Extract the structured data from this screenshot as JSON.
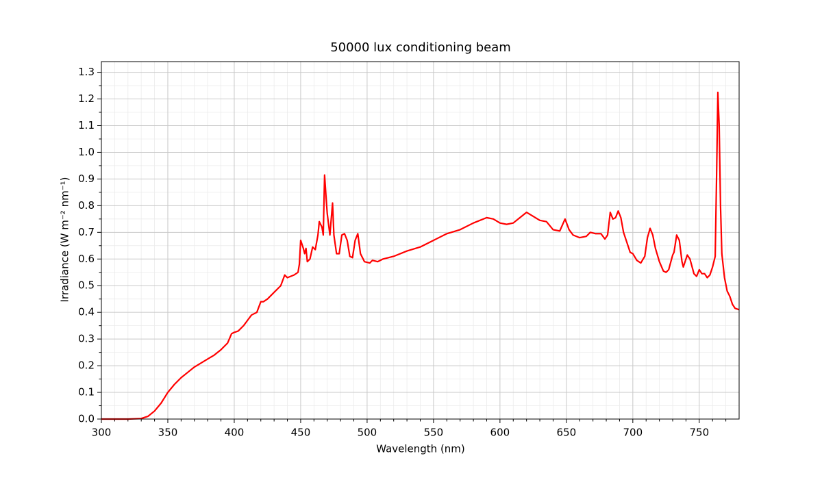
{
  "chart_data": {
    "type": "line",
    "title": "50000 lux conditioning beam",
    "xlabel": "Wavelength (nm)",
    "ylabel": "Irradiance (W m⁻² nm⁻¹)",
    "color": "#ff0000",
    "grid": true,
    "xlim": [
      300,
      780
    ],
    "ylim": [
      0,
      1.34
    ],
    "xticks": [
      300,
      350,
      400,
      450,
      500,
      550,
      600,
      650,
      700,
      750
    ],
    "yticks": [
      {
        "value": 0,
        "label": "0.0"
      },
      0.1,
      0.2,
      0.3,
      0.4,
      0.5,
      0.6,
      0.7,
      0.8,
      0.9,
      {
        "value": 1,
        "label": "1.0"
      },
      1.1,
      1.2,
      1.3
    ],
    "xminorticks": [
      310,
      320,
      330,
      340,
      360,
      370,
      380,
      390,
      410,
      420,
      430,
      440,
      460,
      470,
      480,
      490,
      510,
      520,
      530,
      540,
      560,
      570,
      580,
      590,
      610,
      620,
      630,
      640,
      660,
      670,
      680,
      690,
      710,
      720,
      730,
      740,
      760,
      770
    ],
    "yminorticks": [
      0.05,
      0.15,
      0.25,
      0.35,
      0.45,
      0.55,
      0.65,
      0.75,
      0.85,
      0.95,
      1.05,
      1.15,
      1.25
    ],
    "x": [
      300,
      320,
      330,
      335,
      340,
      345,
      350,
      355,
      360,
      365,
      370,
      375,
      380,
      385,
      390,
      395,
      398,
      400,
      403,
      407,
      410,
      413,
      417,
      420,
      422,
      425,
      430,
      435,
      438,
      440,
      445,
      448,
      449,
      450,
      452,
      453,
      454,
      455,
      457,
      459,
      461,
      463,
      464,
      466,
      467,
      468,
      469,
      470,
      472,
      474,
      475,
      477,
      479,
      481,
      483,
      485,
      487,
      489,
      491,
      493,
      495,
      498,
      502,
      504,
      508,
      512,
      520,
      530,
      540,
      550,
      560,
      570,
      580,
      590,
      595,
      600,
      605,
      610,
      615,
      620,
      625,
      630,
      635,
      640,
      645,
      649,
      652,
      655,
      660,
      665,
      668,
      672,
      676,
      679,
      681,
      683,
      685,
      687,
      689,
      691,
      693,
      696,
      698,
      700,
      703,
      706,
      709,
      711,
      713,
      715,
      717,
      720,
      723,
      725,
      727,
      730,
      731,
      733,
      735,
      737,
      738,
      740,
      741,
      743,
      746,
      748,
      750,
      752,
      754,
      756,
      758,
      760,
      762,
      763,
      764,
      765,
      766,
      767,
      769,
      771,
      773,
      775,
      777,
      780
    ],
    "values": [
      0,
      0,
      0.002,
      0.01,
      0.03,
      0.06,
      0.1,
      0.13,
      0.155,
      0.175,
      0.195,
      0.21,
      0.225,
      0.24,
      0.26,
      0.285,
      0.32,
      0.325,
      0.33,
      0.35,
      0.37,
      0.39,
      0.4,
      0.44,
      0.44,
      0.45,
      0.475,
      0.5,
      0.54,
      0.53,
      0.54,
      0.55,
      0.58,
      0.67,
      0.64,
      0.62,
      0.64,
      0.59,
      0.6,
      0.645,
      0.635,
      0.69,
      0.74,
      0.72,
      0.69,
      0.915,
      0.84,
      0.77,
      0.69,
      0.81,
      0.69,
      0.62,
      0.62,
      0.69,
      0.695,
      0.67,
      0.61,
      0.605,
      0.67,
      0.695,
      0.62,
      0.59,
      0.585,
      0.595,
      0.59,
      0.6,
      0.61,
      0.63,
      0.645,
      0.67,
      0.695,
      0.71,
      0.735,
      0.755,
      0.75,
      0.735,
      0.73,
      0.735,
      0.755,
      0.775,
      0.76,
      0.745,
      0.74,
      0.71,
      0.705,
      0.75,
      0.71,
      0.69,
      0.68,
      0.685,
      0.7,
      0.695,
      0.695,
      0.675,
      0.69,
      0.775,
      0.75,
      0.755,
      0.78,
      0.755,
      0.7,
      0.655,
      0.625,
      0.62,
      0.595,
      0.585,
      0.61,
      0.68,
      0.715,
      0.69,
      0.64,
      0.59,
      0.555,
      0.55,
      0.56,
      0.615,
      0.625,
      0.69,
      0.67,
      0.59,
      0.57,
      0.6,
      0.615,
      0.6,
      0.545,
      0.535,
      0.56,
      0.545,
      0.545,
      0.53,
      0.54,
      0.57,
      0.61,
      0.9,
      1.225,
      1.1,
      0.8,
      0.62,
      0.53,
      0.48,
      0.46,
      0.43,
      0.415,
      0.41
    ]
  }
}
